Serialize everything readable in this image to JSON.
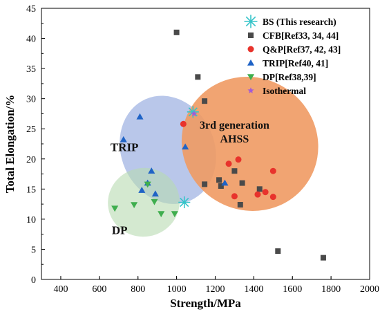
{
  "chart_data": {
    "type": "scatter",
    "xlabel": "Strength/MPa",
    "ylabel": "Total Elongation/%",
    "xlim": [
      300,
      2000
    ],
    "ylim": [
      0,
      45
    ],
    "xticks": [
      400,
      600,
      800,
      1000,
      1200,
      1400,
      1600,
      1800,
      2000
    ],
    "yticks": [
      0,
      5,
      10,
      15,
      20,
      25,
      30,
      35,
      40,
      45
    ],
    "grid": false,
    "legend_position": "top-right",
    "series": [
      {
        "name": "BS (This research)",
        "marker": "asterisk",
        "color": "#35c4c9",
        "points": [
          [
            1040,
            12.8
          ],
          [
            1085,
            27.8
          ]
        ]
      },
      {
        "name": "CFB[Ref33, 34, 44]",
        "marker": "square",
        "color": "#4a4a4a",
        "points": [
          [
            1000,
            41
          ],
          [
            1110,
            33.6
          ],
          [
            1145,
            29.6
          ],
          [
            1145,
            15.8
          ],
          [
            1220,
            16.5
          ],
          [
            1230,
            15.5
          ],
          [
            1300,
            18
          ],
          [
            1340,
            16
          ],
          [
            1330,
            12.4
          ],
          [
            1430,
            15
          ],
          [
            1525,
            4.7
          ],
          [
            1760,
            3.6
          ]
        ]
      },
      {
        "name": "Q&P[Ref37, 42, 43]",
        "marker": "circle",
        "color": "#e8332c",
        "points": [
          [
            1035,
            25.8
          ],
          [
            1270,
            19.2
          ],
          [
            1320,
            19.9
          ],
          [
            1300,
            13.8
          ],
          [
            1420,
            14.1
          ],
          [
            1460,
            14.5
          ],
          [
            1500,
            18
          ],
          [
            1500,
            13.7
          ]
        ]
      },
      {
        "name": "TRIP[Ref40, 41]",
        "marker": "triangle-up",
        "color": "#1f63c6",
        "points": [
          [
            810,
            27
          ],
          [
            725,
            23.2
          ],
          [
            1045,
            22
          ],
          [
            870,
            18
          ],
          [
            890,
            14.2
          ],
          [
            820,
            14.8
          ],
          [
            850,
            16
          ],
          [
            1250,
            16
          ]
        ]
      },
      {
        "name": "DP[Ref38,39]",
        "marker": "triangle-down",
        "color": "#3fae4e",
        "points": [
          [
            680,
            11.8
          ],
          [
            780,
            12.4
          ],
          [
            850,
            15.8
          ],
          [
            885,
            12.9
          ],
          [
            920,
            10.9
          ],
          [
            990,
            10.9
          ]
        ]
      },
      {
        "name": "Isothermal",
        "marker": "star",
        "color": "#a25bd6",
        "points": [
          [
            1090,
            27.5
          ]
        ]
      }
    ],
    "regions": [
      {
        "label": [
          "TRIP"
        ],
        "color": "#8ea5dd",
        "opacity": 0.62,
        "cx": 955,
        "cy": 21.5,
        "rx": 390,
        "ry": 9.2,
        "angle_deg": 24,
        "label_x": 730,
        "label_y": 21.3
      },
      {
        "label": [
          "DP"
        ],
        "color": "#b8dbb0",
        "opacity": 0.6,
        "cx": 830,
        "cy": 12.8,
        "rx": 300,
        "ry": 5.7,
        "angle_deg": 10,
        "label_x": 705,
        "label_y": 7.5
      },
      {
        "label": [
          "3rd generation",
          "AHSS"
        ],
        "color": "#ef9a63",
        "opacity": 0.9,
        "cx": 1380,
        "cy": 22.5,
        "rx": 760,
        "ry": 11.5,
        "angle_deg": 57,
        "label_x": 1300,
        "label_y": 25
      }
    ]
  }
}
